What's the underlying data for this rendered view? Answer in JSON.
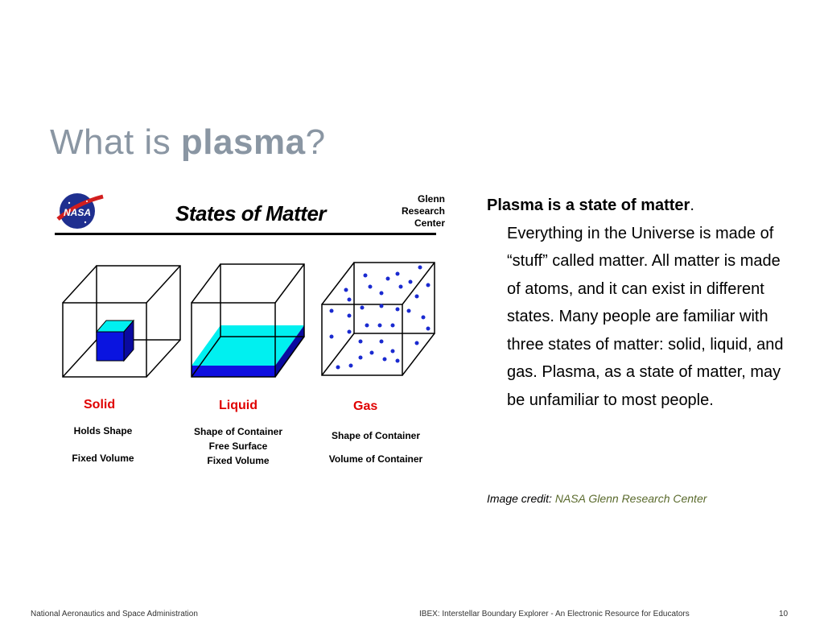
{
  "slide": {
    "title_prefix": "What is ",
    "title_emphasis": "plasma",
    "title_suffix": "?"
  },
  "figure": {
    "title": "States  of  Matter",
    "org_lines": [
      "Glenn",
      "Research",
      "Center"
    ],
    "logo_text": "NASA",
    "states": [
      {
        "name": "Solid",
        "props": [
          "Holds  Shape",
          "Fixed  Volume"
        ]
      },
      {
        "name": "Liquid",
        "props": [
          "Shape  of  Container",
          "Free  Surface",
          "Fixed  Volume"
        ]
      },
      {
        "name": "Gas",
        "props": [
          "Shape  of  Container",
          "Volume of  Container"
        ]
      }
    ],
    "colors": {
      "solid": "#0a14e0",
      "liquid_surface": "#00f0f0",
      "liquid_body": "#1010e0",
      "gas_dots": "#1a2ad0"
    }
  },
  "text": {
    "lead": "Plasma is a state of matter",
    "lead_punct": ".",
    "body": "Everything in the Universe is made of “stuff” called matter. All matter is made of atoms, and it can exist in different states. Many people are familiar with three states of matter: solid, liquid, and gas.  Plasma, as a state of matter, may be unfamiliar to most people."
  },
  "credit": {
    "label": "Image credit: ",
    "source": "NASA Glenn Research Center"
  },
  "footer": {
    "left": "National Aeronautics and Space Administration",
    "center": "IBEX: Interstellar Boundary Explorer -  An Electronic Resource for Educators",
    "page": "10"
  }
}
